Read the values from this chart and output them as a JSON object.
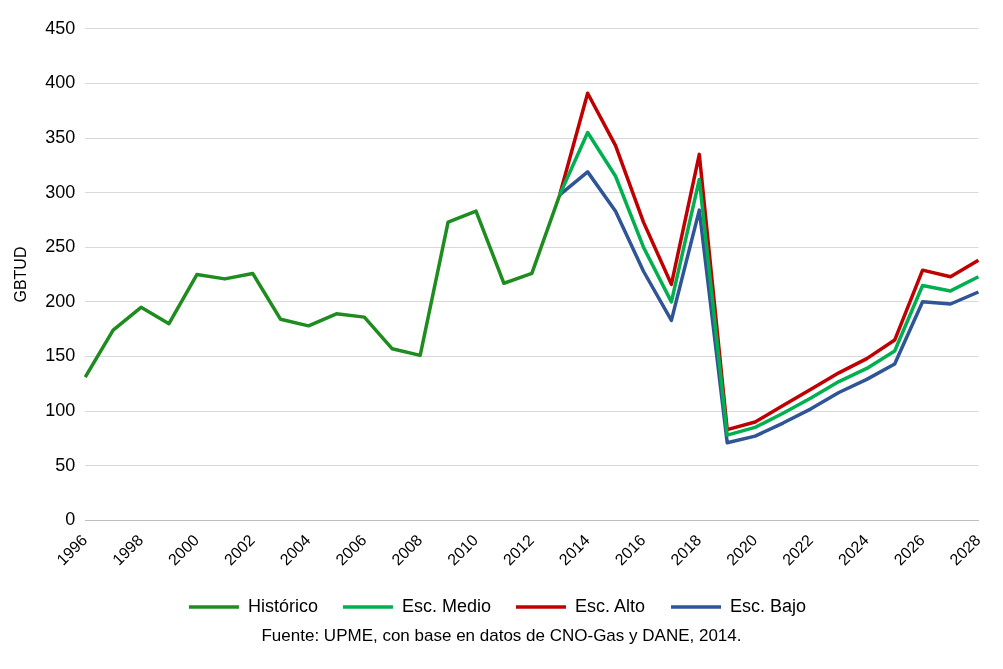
{
  "chart_data": {
    "type": "line",
    "ylabel": "GBTUD",
    "categories": [
      "1996",
      null,
      "1998",
      null,
      "2000",
      null,
      "2002",
      null,
      "2004",
      null,
      "2006",
      null,
      "2008",
      null,
      "2010",
      null,
      "2012",
      null,
      "2014",
      null,
      "2016",
      null,
      "2018",
      null,
      "2020",
      null,
      "2022",
      null,
      "2024",
      null,
      "2026",
      null,
      "2028"
    ],
    "series": [
      {
        "name": "Histórico",
        "color": "#1e8c1e",
        "values": [
          131,
          174,
          195,
          180,
          225,
          221,
          226,
          184,
          178,
          189,
          186,
          157,
          151,
          273,
          283,
          217,
          226,
          298,
          null,
          null,
          null,
          null,
          null,
          null,
          null,
          null,
          null,
          null,
          null,
          null,
          null,
          null,
          null
        ]
      },
      {
        "name": "Esc. Medio",
        "color": "#00b050",
        "values": [
          null,
          null,
          null,
          null,
          null,
          null,
          null,
          null,
          null,
          null,
          null,
          null,
          null,
          null,
          null,
          null,
          null,
          298,
          355,
          315,
          250,
          200,
          312,
          78,
          85,
          98,
          112,
          127,
          139,
          155,
          215,
          210,
          223
        ]
      },
      {
        "name": "Esc. Alto",
        "color": "#c00000",
        "values": [
          null,
          null,
          null,
          null,
          null,
          null,
          null,
          null,
          null,
          null,
          null,
          null,
          null,
          null,
          null,
          null,
          null,
          298,
          391,
          343,
          273,
          216,
          335,
          83,
          90,
          105,
          120,
          135,
          148,
          165,
          229,
          223,
          238
        ]
      },
      {
        "name": "Esc. Bajo",
        "color": "#2f5597",
        "values": [
          null,
          null,
          null,
          null,
          null,
          null,
          null,
          null,
          null,
          null,
          null,
          null,
          null,
          null,
          null,
          null,
          null,
          298,
          319,
          283,
          228,
          183,
          284,
          71,
          77,
          89,
          102,
          117,
          129,
          143,
          200,
          198,
          209
        ]
      }
    ],
    "ylim": [
      0,
      450
    ],
    "yticks": [
      0,
      50,
      100,
      150,
      200,
      250,
      300,
      350,
      400,
      450
    ],
    "grid": "y",
    "legend": "bottom",
    "marker": "none",
    "line_style": "solid",
    "annotations": [
      "Fuente: UPME, con base en datos de CNO-Gas y DANE, 2014."
    ]
  }
}
